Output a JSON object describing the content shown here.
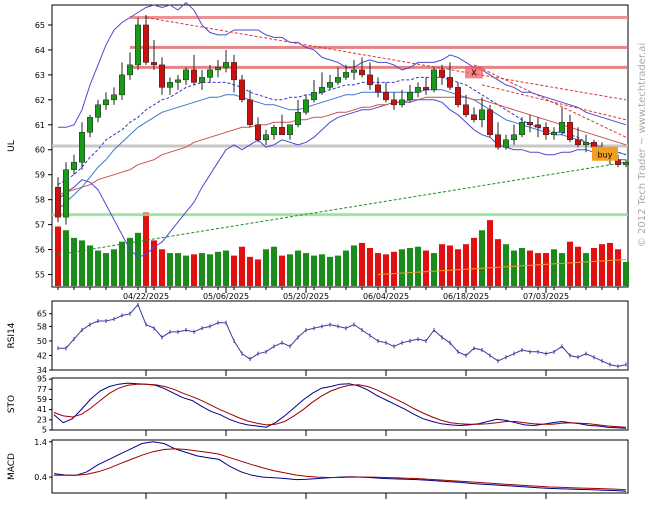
{
  "chart_data": [
    {
      "type": "candlestick",
      "panel": "price",
      "ylabel": "UL",
      "ylim": [
        54.5,
        65.8
      ],
      "yticks": [
        55,
        56,
        57,
        58,
        59,
        60,
        61,
        62,
        63,
        64,
        65
      ],
      "x_tick_labels": [
        "04/22/2025",
        "05/06/2025",
        "05/20/2025",
        "06/04/2025",
        "06/18/2025",
        "07/03/2025"
      ],
      "x_tick_index": [
        11,
        21,
        31,
        41,
        51,
        61
      ],
      "bar_count": 72,
      "candles": {
        "open": [
          58.5,
          57.3,
          59.2,
          59.5,
          60.7,
          61.3,
          61.8,
          62.0,
          62.2,
          63.0,
          63.4,
          65.0,
          63.5,
          63.4,
          62.5,
          62.7,
          62.8,
          63.2,
          62.7,
          62.9,
          63.2,
          63.3,
          63.5,
          62.8,
          62.0,
          61.0,
          60.4,
          60.6,
          60.9,
          60.6,
          61.0,
          61.5,
          62.0,
          62.3,
          62.5,
          62.7,
          62.9,
          63.1,
          63.2,
          63.0,
          62.6,
          62.3,
          62.0,
          61.8,
          62.0,
          62.3,
          62.5,
          62.4,
          63.2,
          62.9,
          62.5,
          61.8,
          61.4,
          61.2,
          61.6,
          60.6,
          60.1,
          60.4,
          60.6,
          61.1,
          61.0,
          60.9,
          60.6,
          60.7,
          61.1,
          60.4,
          60.2,
          60.3,
          60.1,
          59.9,
          59.6,
          59.4
        ],
        "high": [
          58.9,
          59.5,
          59.8,
          61.1,
          61.4,
          62.0,
          62.3,
          62.5,
          63.5,
          63.9,
          65.3,
          65.4,
          64.4,
          63.7,
          62.9,
          63.0,
          63.3,
          63.8,
          63.2,
          63.4,
          63.6,
          64.0,
          63.8,
          63.0,
          62.4,
          61.3,
          60.8,
          61.0,
          61.4,
          61.0,
          62.0,
          62.2,
          62.8,
          63.1,
          63.0,
          63.3,
          63.4,
          63.6,
          63.7,
          63.5,
          62.9,
          62.7,
          62.3,
          62.4,
          62.6,
          62.7,
          62.9,
          63.3,
          63.4,
          63.5,
          62.7,
          62.2,
          61.7,
          62.1,
          61.8,
          61.1,
          60.6,
          61.0,
          61.3,
          61.4,
          61.3,
          61.1,
          60.9,
          61.7,
          61.4,
          60.9,
          60.6,
          60.4,
          60.3,
          60.1,
          59.8,
          59.6
        ],
        "low": [
          57.1,
          57.0,
          59.0,
          59.2,
          60.5,
          61.1,
          61.6,
          61.8,
          62.0,
          62.8,
          63.2,
          63.4,
          63.2,
          62.2,
          62.2,
          62.4,
          62.6,
          62.6,
          62.4,
          62.7,
          62.9,
          63.1,
          62.3,
          61.9,
          60.9,
          60.3,
          60.2,
          60.4,
          60.6,
          60.4,
          60.9,
          61.4,
          61.9,
          62.2,
          62.4,
          62.6,
          62.8,
          62.8,
          62.9,
          62.4,
          62.1,
          61.9,
          61.6,
          61.7,
          61.9,
          62.1,
          62.2,
          62.3,
          62.6,
          62.4,
          61.7,
          61.3,
          61.1,
          60.9,
          60.5,
          60.0,
          60.0,
          60.2,
          60.5,
          60.7,
          60.5,
          60.4,
          60.4,
          60.6,
          60.3,
          60.1,
          59.9,
          59.7,
          59.6,
          59.4,
          59.3,
          59.3
        ],
        "close": [
          57.3,
          59.2,
          59.5,
          60.7,
          61.3,
          61.8,
          62.0,
          62.2,
          63.0,
          63.4,
          65.0,
          63.5,
          63.4,
          62.5,
          62.7,
          62.8,
          63.2,
          62.7,
          62.9,
          63.2,
          63.3,
          63.5,
          62.8,
          62.0,
          61.0,
          60.4,
          60.6,
          60.9,
          60.6,
          61.0,
          61.5,
          62.0,
          62.3,
          62.5,
          62.7,
          62.9,
          63.1,
          63.2,
          63.0,
          62.6,
          62.3,
          62.0,
          61.8,
          62.0,
          62.3,
          62.5,
          62.4,
          63.2,
          62.9,
          62.5,
          61.8,
          61.4,
          61.2,
          61.6,
          60.6,
          60.1,
          60.4,
          60.6,
          61.1,
          61.0,
          60.9,
          60.6,
          60.7,
          61.1,
          60.4,
          60.2,
          60.3,
          60.1,
          59.9,
          59.6,
          59.4,
          59.5
        ]
      },
      "volume": [
        4.7,
        4.4,
        3.8,
        3.6,
        3.2,
        2.8,
        2.6,
        2.9,
        3.5,
        3.8,
        4.2,
        5.8,
        3.6,
        2.9,
        2.6,
        2.6,
        2.4,
        2.5,
        2.6,
        2.5,
        2.7,
        2.8,
        2.4,
        3.1,
        2.3,
        2.1,
        2.9,
        3.1,
        2.4,
        2.5,
        2.8,
        2.6,
        2.4,
        2.5,
        2.3,
        2.4,
        2.8,
        3.2,
        3.4,
        3.0,
        2.6,
        2.5,
        2.7,
        2.9,
        3.0,
        3.1,
        2.8,
        2.6,
        3.3,
        3.2,
        2.9,
        3.3,
        3.8,
        4.4,
        5.2,
        3.7,
        3.3,
        2.8,
        3.0,
        2.8,
        2.6,
        2.6,
        2.9,
        2.6,
        3.5,
        3.1,
        2.6,
        3.0,
        3.3,
        3.4,
        2.9,
        1.9
      ],
      "horizontal_lines": [
        {
          "y": 65.3,
          "color": "#e88080"
        },
        {
          "y": 64.1,
          "color": "#e07070"
        },
        {
          "y": 63.3,
          "color": "#e07070"
        },
        {
          "y": 60.15,
          "color": "#bdbdbd"
        },
        {
          "y": 57.4,
          "color": "#8fe08f"
        }
      ],
      "trend_lines": [
        {
          "from": [
            11,
            65.3
          ],
          "to": [
            71,
            62.0
          ],
          "color": "#dd3333"
        },
        {
          "from": [
            52,
            63.4
          ],
          "to": [
            71,
            60.5
          ],
          "color": "#dd3333"
        },
        {
          "from": [
            53,
            62.6
          ],
          "to": [
            71,
            61.2
          ],
          "color": "#dd3333"
        },
        {
          "from": [
            0,
            55.8
          ],
          "to": [
            71,
            59.5
          ],
          "color": "#228b22"
        }
      ],
      "overlays": {
        "bollinger_upper": [
          60.9,
          60.9,
          61.0,
          61.6,
          62.6,
          63.4,
          64.2,
          64.8,
          65.1,
          65.3,
          65.5,
          65.7,
          65.8,
          65.7,
          65.8,
          65.6,
          65.9,
          65.6,
          65.0,
          64.7,
          64.6,
          64.6,
          64.8,
          64.8,
          64.8,
          64.8,
          64.6,
          64.5,
          64.5,
          64.3,
          64.3,
          64.1,
          64.0,
          63.7,
          63.6,
          63.5,
          63.3,
          63.3,
          63.5,
          63.6,
          63.5,
          63.5,
          63.4,
          63.2,
          63.3,
          63.5,
          63.5,
          63.5,
          63.6,
          63.8,
          63.7,
          63.5,
          63.3,
          63.2,
          63.0,
          62.8,
          62.6,
          62.5,
          62.3,
          62.3,
          62.2,
          62.1,
          62.0,
          61.9,
          61.8,
          61.7,
          61.5,
          61.4,
          61.3,
          61.2,
          61.1,
          61.0
        ],
        "bollinger_mid": [
          57.6,
          57.9,
          58.2,
          58.5,
          58.9,
          59.3,
          59.6,
          60.0,
          60.3,
          60.6,
          60.9,
          61.1,
          61.3,
          61.5,
          61.6,
          61.7,
          61.8,
          61.9,
          62.0,
          62.1,
          62.1,
          62.2,
          62.2,
          62.1,
          62.0,
          61.9,
          61.8,
          61.8,
          61.7,
          61.6,
          61.6,
          61.7,
          61.8,
          61.9,
          62.0,
          62.1,
          62.2,
          62.2,
          62.3,
          62.3,
          62.3,
          62.3,
          62.3,
          62.3,
          62.3,
          62.3,
          62.4,
          62.4,
          62.4,
          62.3,
          62.2,
          62.1,
          62.0,
          61.8,
          61.6,
          61.4,
          61.2,
          61.1,
          61.0,
          60.9,
          60.8,
          60.7,
          60.6,
          60.6,
          60.5,
          60.4,
          60.3,
          60.2,
          60.1,
          60.0,
          59.9,
          59.8
        ],
        "bollinger_lower": [
          58.0,
          58.3,
          58.5,
          58.8,
          58.7,
          58.4,
          57.8,
          57.2,
          56.6,
          56.0,
          55.7,
          55.8,
          56.1,
          56.3,
          56.7,
          57.1,
          57.5,
          57.9,
          58.5,
          59.0,
          59.5,
          60.0,
          60.2,
          60.0,
          60.2,
          60.4,
          60.1,
          60.2,
          60.4,
          60.3,
          60.2,
          60.3,
          60.5,
          60.8,
          61.1,
          61.3,
          61.4,
          61.5,
          61.6,
          61.6,
          61.7,
          61.8,
          61.9,
          61.9,
          61.9,
          62.0,
          62.0,
          62.0,
          61.9,
          61.6,
          61.4,
          61.1,
          60.8,
          60.6,
          60.5,
          60.2,
          60.1,
          60.0,
          60.0,
          59.9,
          59.9,
          59.8,
          59.8,
          59.9,
          59.9,
          60.0,
          60.0,
          59.9,
          59.8,
          59.7,
          59.6,
          59.6
        ],
        "ma_blue_dashed": [
          58.6,
          58.8,
          59.0,
          59.3,
          59.7,
          60.0,
          60.4,
          60.6,
          60.8,
          61.1,
          61.3,
          61.6,
          61.8,
          62.0,
          62.1,
          62.3,
          62.5,
          62.6,
          62.7,
          62.7,
          62.7,
          62.7,
          62.6,
          62.5,
          62.3,
          62.2,
          62.1,
          62.0,
          62.0,
          62.1,
          62.1,
          62.2,
          62.2,
          62.3,
          62.4,
          62.5,
          62.6,
          62.6,
          62.7,
          62.7,
          62.7,
          62.7,
          62.7,
          62.8,
          62.8,
          62.9,
          62.9,
          62.9,
          62.9,
          62.8,
          62.7,
          62.6,
          62.4,
          62.2,
          62.0,
          61.8,
          61.6,
          61.4,
          61.2,
          61.0,
          60.9,
          60.8,
          60.7,
          60.7,
          60.6,
          60.5,
          60.3,
          60.2,
          60.1,
          60.0,
          59.9,
          59.8
        ],
        "ma_red": [
          58.2,
          58.3,
          58.4,
          58.5,
          58.6,
          58.8,
          58.9,
          59.0,
          59.1,
          59.2,
          59.4,
          59.5,
          59.6,
          59.8,
          59.9,
          60.0,
          60.1,
          60.3,
          60.4,
          60.5,
          60.6,
          60.7,
          60.8,
          60.9,
          60.9,
          61.0,
          61.0,
          61.1,
          61.1,
          61.1,
          61.2,
          61.2,
          61.3,
          61.3,
          61.4,
          61.5,
          61.5,
          61.6,
          61.7,
          61.7,
          61.8,
          61.8,
          61.9,
          61.9,
          62.0,
          62.0,
          62.1,
          62.1,
          62.1,
          62.1,
          62.1,
          62.1,
          62.0,
          62.0,
          61.9,
          61.8,
          61.7,
          61.6,
          61.5,
          61.4,
          61.3,
          61.2,
          61.1,
          61.0,
          60.9,
          60.8,
          60.7,
          60.6,
          60.5,
          60.4,
          60.3,
          60.2
        ]
      },
      "volume_trend": {
        "from": [
          40,
          55.0
        ],
        "to": [
          71,
          55.6
        ],
        "color": "#e8a030"
      },
      "annotations": [
        {
          "text": "X",
          "bar": 52,
          "y": 63.1
        },
        {
          "text": "buy",
          "bar": 68,
          "y": 59.8
        }
      ],
      "watermark": "© 2012 Tech Trader ~ www.techtrader.ai"
    },
    {
      "type": "line",
      "panel": "rsi",
      "ylabel": "RSI14",
      "ylim": [
        34,
        72
      ],
      "yticks": [
        34,
        42,
        50,
        58,
        65
      ],
      "values": [
        46,
        46,
        51,
        56,
        59,
        61,
        61,
        62,
        64,
        65,
        70,
        59,
        57,
        52,
        55,
        55,
        56,
        55,
        57,
        58,
        60,
        60,
        50,
        43,
        40,
        43,
        44,
        47,
        49,
        47,
        52,
        56,
        57,
        58,
        59,
        58,
        57,
        59,
        56,
        53,
        50,
        49,
        47,
        49,
        50,
        51,
        50,
        56,
        52,
        49,
        44,
        42,
        46,
        45,
        42,
        39,
        41,
        43,
        45,
        44,
        44,
        43,
        44,
        47,
        42,
        41,
        43,
        41,
        39,
        37,
        36,
        37
      ]
    },
    {
      "type": "line",
      "panel": "sto",
      "ylabel": "STO",
      "ylim": [
        5,
        97
      ],
      "yticks": [
        5,
        23,
        41,
        59,
        77,
        95
      ],
      "series": [
        {
          "values": [
            32,
            18,
            25,
            42,
            60,
            74,
            82,
            86,
            88,
            87,
            86,
            84,
            78,
            70,
            62,
            57,
            47,
            38,
            32,
            24,
            18,
            14,
            12,
            10,
            18,
            30,
            44,
            58,
            70,
            79,
            82,
            86,
            87,
            83,
            76,
            66,
            58,
            50,
            42,
            33,
            25,
            20,
            16,
            14,
            13,
            14,
            16,
            20,
            24,
            22,
            18,
            14,
            13,
            15,
            18,
            20,
            18,
            16,
            13,
            12,
            10,
            9,
            8
          ],
          "color": "#00008b"
        },
        {
          "values": [
            36,
            30,
            28,
            33,
            44,
            57,
            70,
            79,
            84,
            86,
            86,
            85,
            82,
            77,
            70,
            64,
            57,
            49,
            41,
            34,
            27,
            21,
            17,
            14,
            15,
            20,
            30,
            41,
            54,
            65,
            74,
            80,
            84,
            85,
            82,
            76,
            68,
            60,
            52,
            43,
            35,
            28,
            22,
            18,
            16,
            15,
            15,
            16,
            18,
            20,
            20,
            18,
            16,
            15,
            15,
            17,
            18,
            17,
            16,
            14,
            12,
            11,
            10
          ],
          "color": "#a00000"
        }
      ]
    },
    {
      "type": "line",
      "panel": "macd",
      "ylabel": "MACD",
      "ylim": [
        -0.05,
        1.45
      ],
      "yticks": [
        0.4,
        1.4
      ],
      "series": [
        {
          "values": [
            0.5,
            0.46,
            0.45,
            0.55,
            0.75,
            0.9,
            1.05,
            1.2,
            1.35,
            1.4,
            1.35,
            1.2,
            1.1,
            1.0,
            0.95,
            0.9,
            0.7,
            0.55,
            0.45,
            0.4,
            0.38,
            0.36,
            0.33,
            0.34,
            0.36,
            0.38,
            0.4,
            0.41,
            0.4,
            0.38,
            0.36,
            0.35,
            0.34,
            0.33,
            0.31,
            0.29,
            0.27,
            0.25,
            0.22,
            0.2,
            0.18,
            0.16,
            0.14,
            0.12,
            0.1,
            0.08,
            0.07,
            0.06,
            0.05,
            0.04,
            0.03,
            0.02,
            0.0
          ],
          "color": "#00008b"
        },
        {
          "values": [
            0.45,
            0.45,
            0.45,
            0.48,
            0.55,
            0.65,
            0.78,
            0.9,
            1.02,
            1.12,
            1.18,
            1.2,
            1.18,
            1.14,
            1.1,
            1.05,
            0.95,
            0.85,
            0.75,
            0.66,
            0.58,
            0.52,
            0.46,
            0.42,
            0.4,
            0.39,
            0.39,
            0.4,
            0.4,
            0.4,
            0.39,
            0.38,
            0.37,
            0.36,
            0.34,
            0.32,
            0.3,
            0.28,
            0.26,
            0.24,
            0.22,
            0.2,
            0.18,
            0.16,
            0.14,
            0.12,
            0.11,
            0.1,
            0.09,
            0.08,
            0.07,
            0.06,
            0.04
          ],
          "color": "#a00000"
        }
      ]
    }
  ]
}
